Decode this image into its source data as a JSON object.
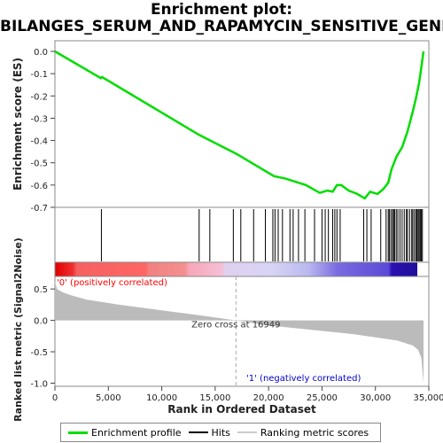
{
  "title_line1": "Enrichment plot:",
  "title_line2": "BILANGES_SERUM_AND_RAPAMYCIN_SENSITIVE_GENES",
  "chart_data": {
    "type": "line",
    "es_ylabel": "Enrichment score (ES)",
    "es_yticks": [
      "0.0",
      "-0.1",
      "-0.2",
      "-0.3",
      "-0.4",
      "-0.5",
      "-0.6",
      "-0.7"
    ],
    "es_ylim": [
      -0.7,
      0.0
    ],
    "xlim": [
      0,
      35000
    ],
    "xlabel": "Rank in Ordered Dataset",
    "xticks": [
      "0",
      "5,000",
      "10,000",
      "15,000",
      "20,000",
      "25,000",
      "30,000",
      "35,000"
    ],
    "es_curve": {
      "x": [
        0,
        4300,
        4400,
        13500,
        17000,
        20500,
        21500,
        22500,
        23500,
        24800,
        25500,
        26000,
        26400,
        26800,
        27500,
        28300,
        29000,
        29500,
        30200,
        30700,
        31200,
        31500,
        32000,
        32500,
        33000,
        33500,
        33800,
        34100,
        34300,
        34500
      ],
      "y": [
        0.0,
        -0.12,
        -0.115,
        -0.375,
        -0.46,
        -0.56,
        -0.57,
        -0.585,
        -0.6,
        -0.635,
        -0.625,
        -0.63,
        -0.6,
        -0.6,
        -0.625,
        -0.64,
        -0.66,
        -0.63,
        -0.64,
        -0.62,
        -0.59,
        -0.53,
        -0.47,
        -0.43,
        -0.36,
        -0.27,
        -0.21,
        -0.14,
        -0.07,
        0.0
      ]
    },
    "hits": [
      4350,
      13500,
      14500,
      16700,
      17400,
      18600,
      19700,
      20400,
      20600,
      20900,
      21300,
      22000,
      22300,
      22800,
      23400,
      24300,
      25000,
      25300,
      25600,
      26000,
      26200,
      26400,
      26700,
      28900,
      29200,
      29600,
      30500,
      31000,
      31200,
      31300,
      31450,
      31600,
      31700,
      31800,
      31950,
      32100,
      32300,
      32500,
      32700,
      32900,
      33000,
      33200,
      33400,
      33500,
      33650,
      33800,
      33900,
      34000,
      34100,
      34200,
      34300,
      34400
    ],
    "metric_ylabel": "Ranked list metric (Signal2Noise)",
    "metric_yticks": [
      "0.5",
      "0.0",
      "-0.5",
      "-1.0"
    ],
    "metric_ylim": [
      -1.05,
      0.7
    ],
    "metric_curve": {
      "x": [
        0,
        200,
        700,
        1500,
        3000,
        6000,
        10000,
        14000,
        16949,
        20000,
        24000,
        28000,
        30000,
        32000,
        33500,
        34000,
        34300,
        34500
      ],
      "y": [
        0.62,
        0.5,
        0.45,
        0.4,
        0.33,
        0.25,
        0.16,
        0.07,
        0.0,
        -0.08,
        -0.15,
        -0.22,
        -0.27,
        -0.32,
        -0.4,
        -0.47,
        -0.6,
        -1.0
      ]
    },
    "zero_cross_label": "Zero cross at 16949",
    "zero_cross_x": 16949,
    "pos_label": "'0' (positively correlated)",
    "neg_label": "'1' (negatively correlated)",
    "colors": {
      "es": "#00dd00",
      "hit": "#000000",
      "metric_fill": "#bbbbbb",
      "pos": "#ff0000",
      "neg": "#0000cc"
    }
  },
  "legend": {
    "es_label": "Enrichment profile",
    "hits_label": "Hits",
    "metric_label": "Ranking metric scores"
  }
}
